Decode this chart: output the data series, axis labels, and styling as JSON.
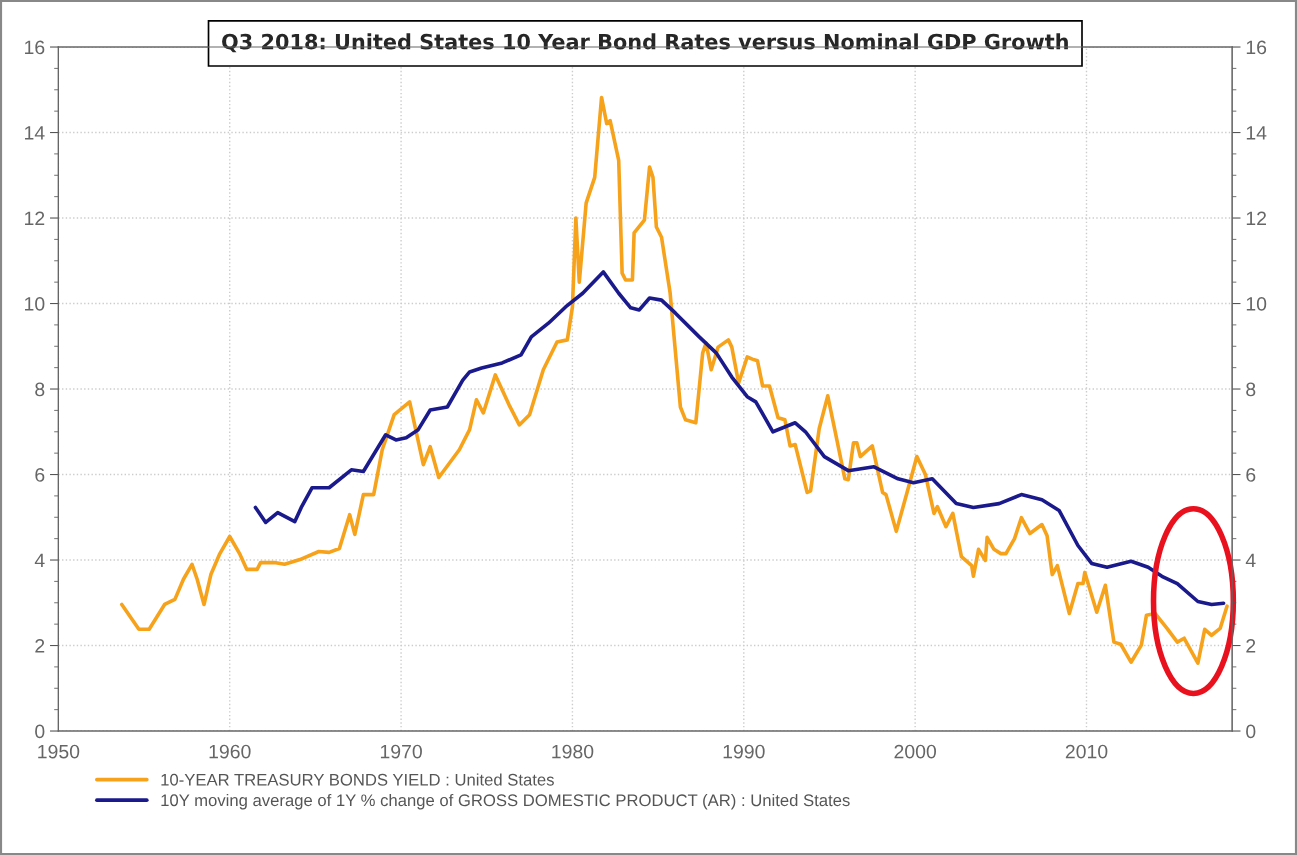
{
  "chart_data": {
    "type": "line",
    "title": "Q3 2018: United States 10 Year Bond Rates versus Nominal GDP Growth",
    "xlim": [
      1950,
      2018.5
    ],
    "xticks": [
      1950,
      1960,
      1970,
      1980,
      1990,
      2000,
      2010
    ],
    "ylim": [
      0,
      16
    ],
    "yticks": [
      0,
      2,
      4,
      6,
      8,
      10,
      12,
      14,
      16
    ],
    "y2lim": [
      0,
      16
    ],
    "y2ticks": [
      0,
      2,
      4,
      6,
      8,
      10,
      12,
      14,
      16
    ],
    "grid": true,
    "legend": "bottom",
    "marker": "none",
    "line_style": "solid",
    "series": [
      {
        "name": "10-YEAR TREASURY BONDS YIELD : United States",
        "color": "#f7a21b",
        "x": [
          1953.7,
          1954.7,
          1955.3,
          1956.2,
          1956.8,
          1957.3,
          1957.8,
          1958.1,
          1958.5,
          1958.9,
          1959.4,
          1960.0,
          1960.6,
          1961.0,
          1961.6,
          1961.8,
          1962.6,
          1963.2,
          1964.1,
          1965.2,
          1965.8,
          1966.4,
          1967.0,
          1967.3,
          1967.8,
          1968.4,
          1968.9,
          1969.6,
          1970.5,
          1971.3,
          1971.7,
          1972.2,
          1973.4,
          1974.0,
          1974.4,
          1974.8,
          1975.5,
          1976.3,
          1976.9,
          1977.5,
          1978.3,
          1979.1,
          1979.7,
          1980.0,
          1980.2,
          1980.4,
          1980.8,
          1981.3,
          1981.7,
          1982.0,
          1982.2,
          1982.7,
          1982.9,
          1983.1,
          1983.5,
          1983.6,
          1984.2,
          1984.5,
          1984.7,
          1984.9,
          1985.2,
          1985.7,
          1986.3,
          1986.6,
          1987.2,
          1987.6,
          1987.8,
          1988.1,
          1988.5,
          1989.1,
          1989.3,
          1989.7,
          1990.2,
          1990.5,
          1990.8,
          1991.1,
          1991.5,
          1992.0,
          1992.4,
          1992.7,
          1993.0,
          1993.7,
          1993.9,
          1994.4,
          1994.9,
          1995.3,
          1995.9,
          1996.1,
          1996.4,
          1996.6,
          1996.8,
          1997.5,
          1998.1,
          1998.3,
          1998.9,
          1999.7,
          2000.1,
          2000.6,
          2001.1,
          2001.3,
          2001.8,
          2002.2,
          2002.7,
          2003.3,
          2003.4,
          2003.7,
          2004.1,
          2004.2,
          2004.6,
          2005.0,
          2005.3,
          2005.8,
          2006.2,
          2006.7,
          2007.4,
          2007.7,
          2008.0,
          2008.3,
          2009.0,
          2009.5,
          2009.8,
          2009.9,
          2010.6,
          2011.1,
          2011.6,
          2012.0,
          2012.6,
          2013.2,
          2013.5,
          2014.0,
          2014.7,
          2015.3,
          2015.7,
          2016.5,
          2016.9,
          2017.3,
          2017.8,
          2018.2
        ],
        "values": [
          2.96,
          2.38,
          2.38,
          2.96,
          3.08,
          3.55,
          3.9,
          3.55,
          2.96,
          3.66,
          4.13,
          4.55,
          4.13,
          3.78,
          3.78,
          3.94,
          3.94,
          3.9,
          4.01,
          4.2,
          4.18,
          4.27,
          5.06,
          4.6,
          5.53,
          5.53,
          6.58,
          7.4,
          7.7,
          6.23,
          6.65,
          5.93,
          6.58,
          7.05,
          7.75,
          7.44,
          8.33,
          7.63,
          7.16,
          7.4,
          8.45,
          9.1,
          9.15,
          9.92,
          12.0,
          10.5,
          12.35,
          12.95,
          14.82,
          14.21,
          14.28,
          13.35,
          10.71,
          10.55,
          10.55,
          11.65,
          11.95,
          13.19,
          12.95,
          11.79,
          11.55,
          10.25,
          7.58,
          7.28,
          7.21,
          8.84,
          9.08,
          8.45,
          8.98,
          9.15,
          8.98,
          8.14,
          8.75,
          8.7,
          8.66,
          8.07,
          8.07,
          7.33,
          7.28,
          6.67,
          6.7,
          5.58,
          5.62,
          7.07,
          7.84,
          7.07,
          5.9,
          5.88,
          6.74,
          6.74,
          6.42,
          6.67,
          5.58,
          5.53,
          4.67,
          5.83,
          6.42,
          6.0,
          5.09,
          5.25,
          4.78,
          5.09,
          4.08,
          3.87,
          3.62,
          4.25,
          3.99,
          4.53,
          4.25,
          4.15,
          4.15,
          4.5,
          4.99,
          4.62,
          4.83,
          4.57,
          3.66,
          3.87,
          2.75,
          3.45,
          3.45,
          3.71,
          2.78,
          3.41,
          2.08,
          2.03,
          1.61,
          2.01,
          2.71,
          2.75,
          2.4,
          2.08,
          2.17,
          1.59,
          2.38,
          2.24,
          2.4,
          2.92
        ]
      },
      {
        "name": "10Y moving average of 1Y % change of GROSS DOMESTIC PRODUCT (AR) : United States",
        "color": "#1a1a8c",
        "x": [
          1961.5,
          1962.1,
          1962.8,
          1963.8,
          1964.2,
          1964.8,
          1965.8,
          1967.1,
          1967.8,
          1969.1,
          1969.7,
          1970.3,
          1971.0,
          1971.7,
          1972.7,
          1973.6,
          1974.0,
          1974.7,
          1975.9,
          1977.0,
          1977.6,
          1978.6,
          1979.6,
          1980.6,
          1981.8,
          1982.7,
          1983.4,
          1983.9,
          1984.5,
          1985.2,
          1986.0,
          1987.4,
          1988.4,
          1989.3,
          1990.2,
          1990.7,
          1991.7,
          1993.0,
          1993.6,
          1994.7,
          1996.1,
          1997.6,
          1999.0,
          1999.9,
          2001.0,
          2002.4,
          2003.4,
          2004.9,
          2006.2,
          2007.4,
          2008.4,
          2009.5,
          2010.3,
          2011.2,
          2012.6,
          2013.6,
          2014.4,
          2015.3,
          2016.5,
          2017.3,
          2018.0
        ],
        "values": [
          5.23,
          4.88,
          5.11,
          4.9,
          5.25,
          5.69,
          5.69,
          6.11,
          6.07,
          6.93,
          6.81,
          6.86,
          7.05,
          7.51,
          7.58,
          8.21,
          8.4,
          8.49,
          8.61,
          8.8,
          9.22,
          9.54,
          9.92,
          10.24,
          10.74,
          10.24,
          9.9,
          9.85,
          10.13,
          10.08,
          9.78,
          9.22,
          8.84,
          8.28,
          7.82,
          7.7,
          7.0,
          7.21,
          7.0,
          6.42,
          6.09,
          6.18,
          5.9,
          5.81,
          5.9,
          5.32,
          5.23,
          5.32,
          5.53,
          5.41,
          5.16,
          4.34,
          3.92,
          3.83,
          3.97,
          3.83,
          3.62,
          3.45,
          3.03,
          2.96,
          2.99
        ]
      }
    ]
  }
}
